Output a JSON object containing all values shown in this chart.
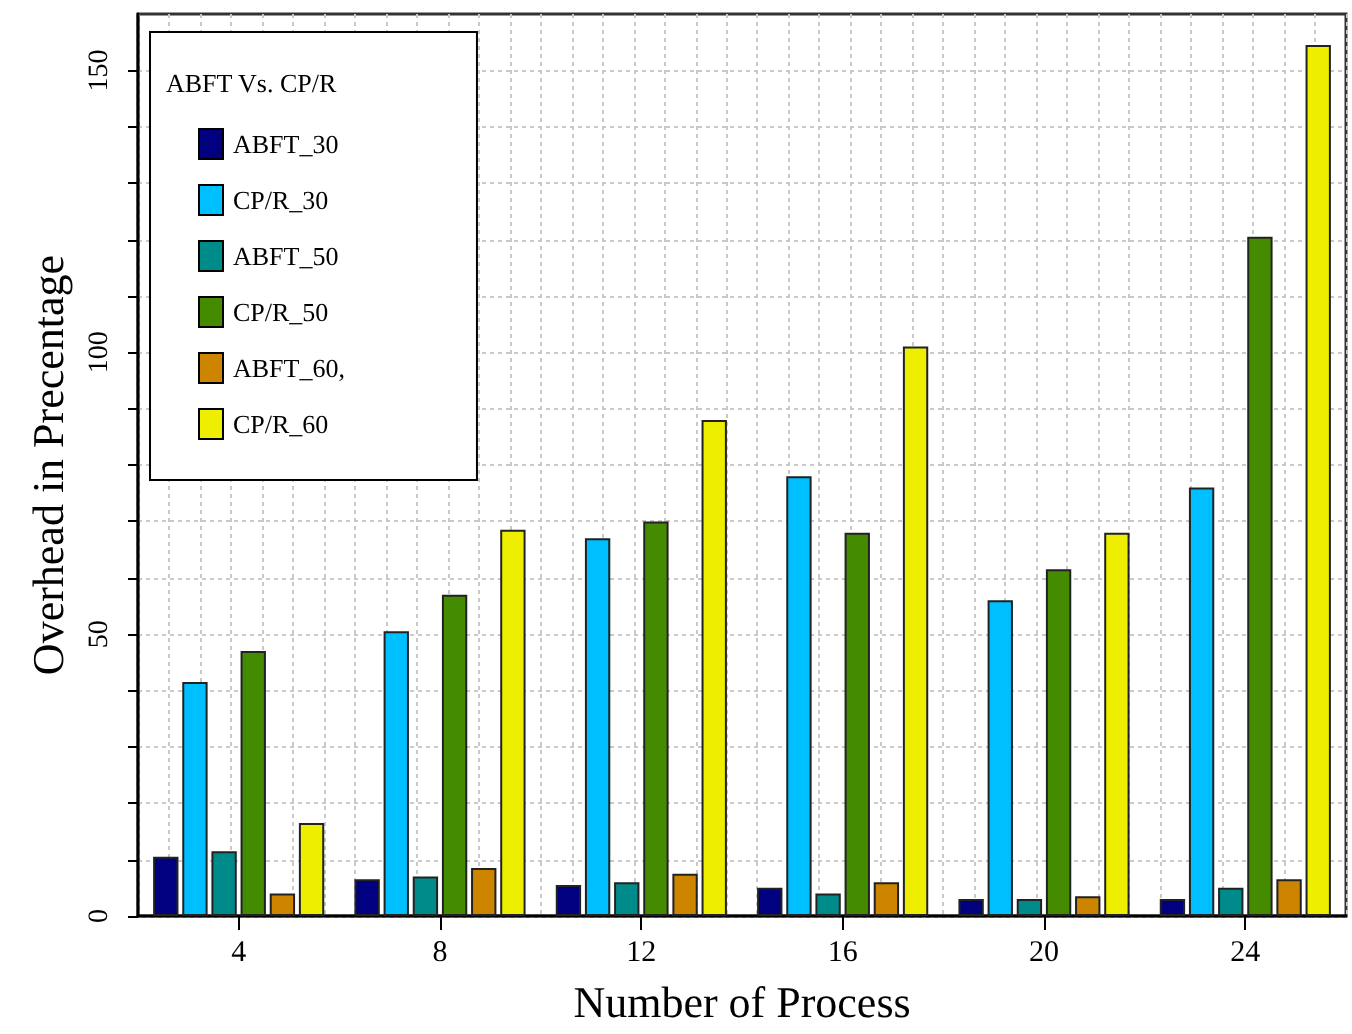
{
  "chart_data": {
    "type": "bar",
    "xlabel": "Number of Process",
    "ylabel": "Overhead in Precentage",
    "legend_title": "ABFT Vs. CP/R",
    "categories": [
      "4",
      "8",
      "12",
      "16",
      "20",
      "24"
    ],
    "series": [
      {
        "name": "ABFT_30",
        "color": "#000080",
        "values": [
          10.5,
          6.5,
          5.5,
          5,
          3,
          3
        ]
      },
      {
        "name": "CP/R_30",
        "color": "#00bfff",
        "values": [
          41.5,
          50.5,
          67,
          78,
          56,
          76
        ]
      },
      {
        "name": "ABFT_50",
        "color": "#008b8b",
        "values": [
          11.5,
          7,
          6,
          4,
          3,
          5
        ]
      },
      {
        "name": "CP/R_50",
        "color": "#458b00",
        "values": [
          47,
          57,
          70,
          68,
          61.5,
          120.5
        ]
      },
      {
        "name": "ABFT_60,",
        "color": "#cd8500",
        "values": [
          4,
          8.5,
          7.5,
          6,
          3.5,
          6.5
        ]
      },
      {
        "name": "CP/R_60",
        "color": "#eeee00",
        "values": [
          16.5,
          68.5,
          88,
          101,
          68,
          154.5
        ]
      }
    ],
    "ylim": [
      0,
      160
    ],
    "yticks": [
      0,
      {
        "value": 10,
        "label": null
      },
      {
        "value": 20,
        "label": null
      },
      {
        "value": 30,
        "label": null
      },
      {
        "value": 40,
        "label": null
      },
      50,
      {
        "value": 60,
        "label": null
      },
      {
        "value": 70,
        "label": null
      },
      {
        "value": 80,
        "label": null
      },
      {
        "value": 90,
        "label": null
      },
      100,
      {
        "value": 110,
        "label": null
      },
      {
        "value": 120,
        "label": null
      },
      {
        "value": 130,
        "label": null
      },
      {
        "value": 140,
        "label": null
      },
      150
    ],
    "grid": true,
    "legend": "top left"
  }
}
